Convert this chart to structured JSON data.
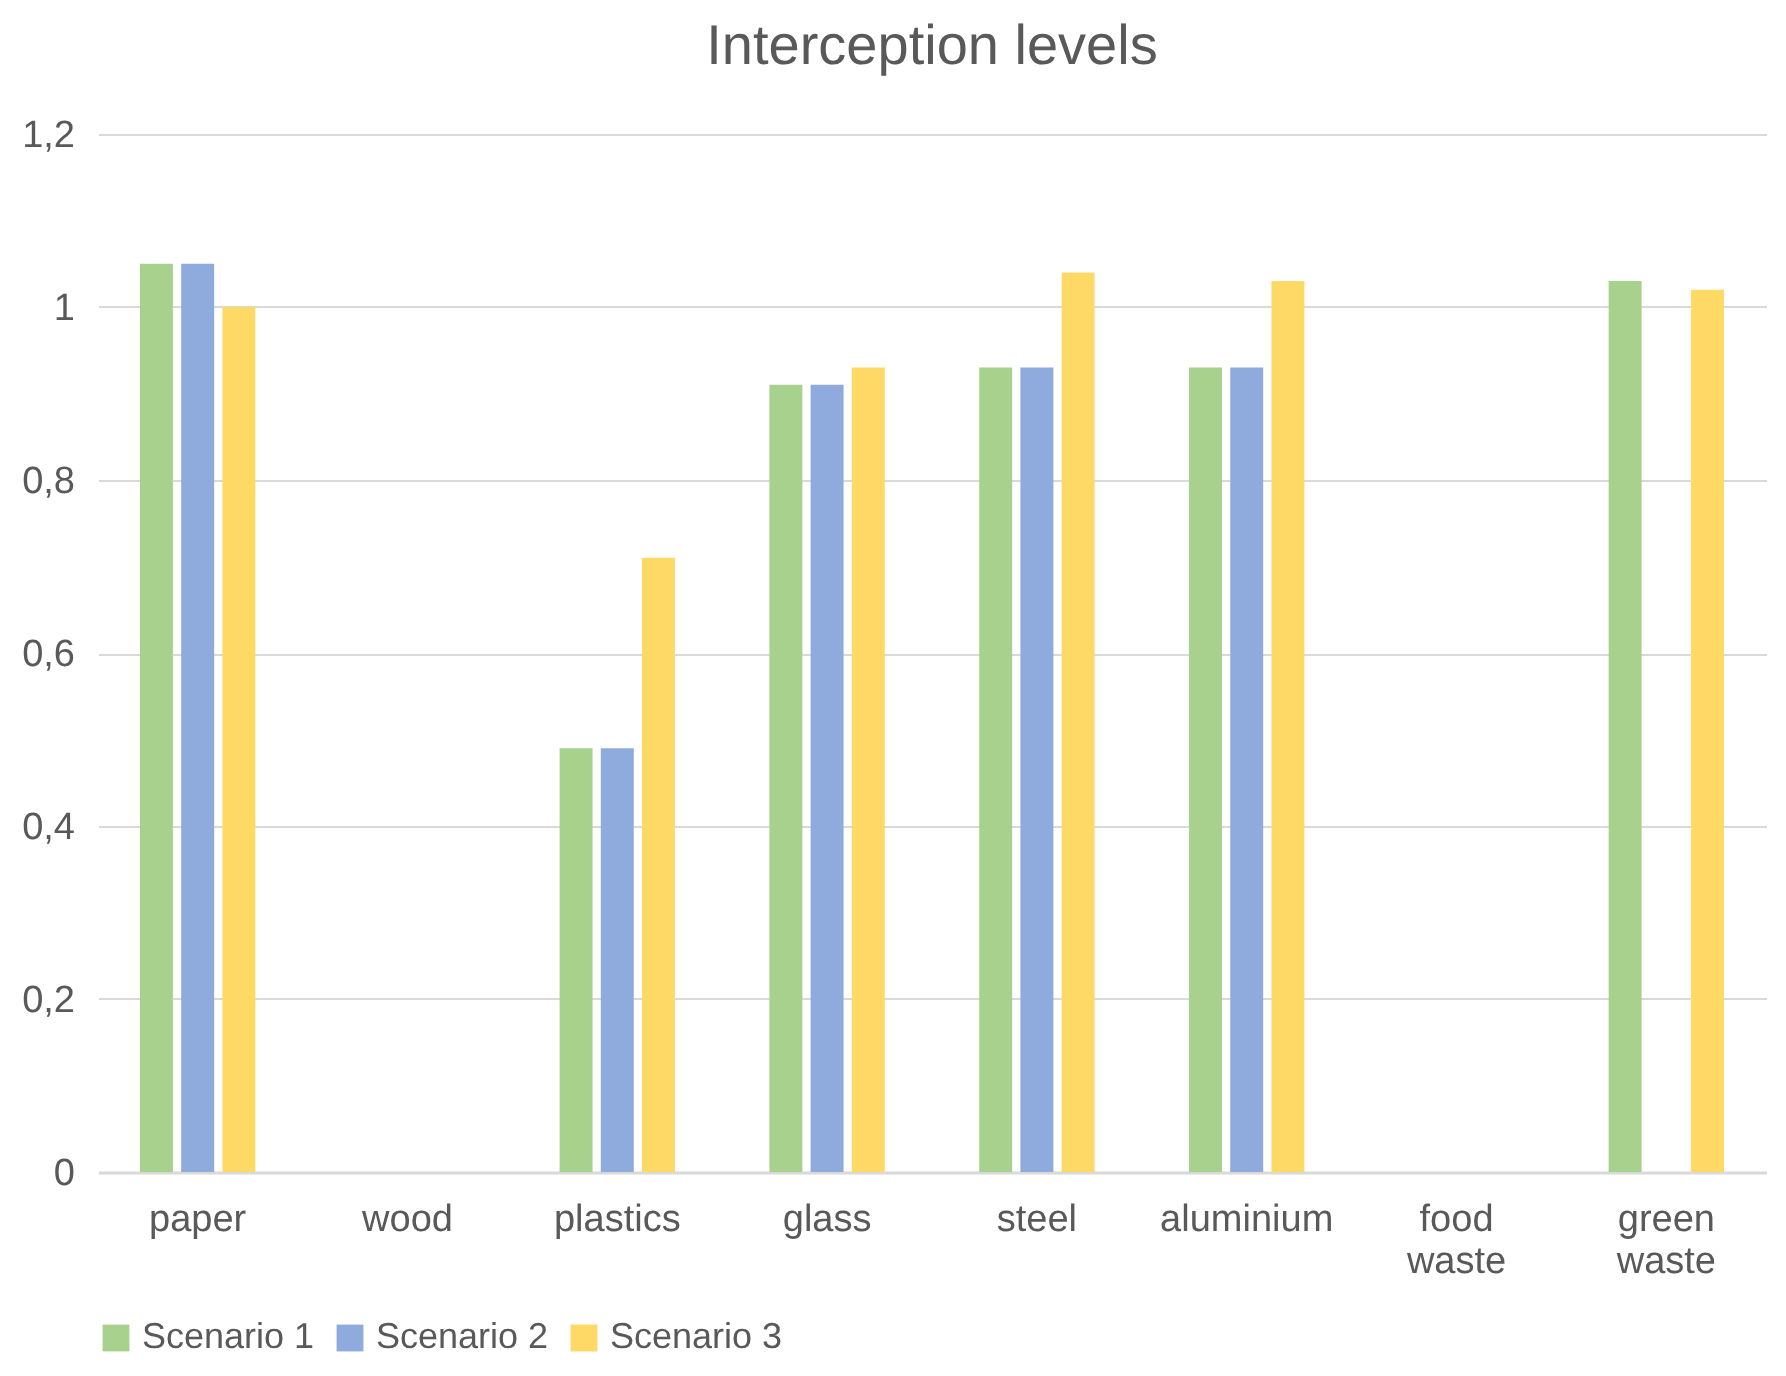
{
  "chart_data": {
    "type": "bar",
    "title": "Interception levels",
    "categories": [
      "paper",
      "wood",
      "plastics",
      "glass",
      "steel",
      "aluminium",
      "food waste",
      "green waste"
    ],
    "series": [
      {
        "name": "Scenario 1",
        "color": "#a9d18e",
        "values": [
          1.05,
          null,
          0.49,
          0.91,
          0.93,
          0.93,
          null,
          1.03
        ]
      },
      {
        "name": "Scenario 2",
        "color": "#8faadc",
        "values": [
          1.05,
          null,
          0.49,
          0.91,
          0.93,
          0.93,
          null,
          null
        ]
      },
      {
        "name": "Scenario 3",
        "color": "#ffd966",
        "values": [
          1.0,
          null,
          0.71,
          0.93,
          1.04,
          1.03,
          null,
          1.02
        ]
      }
    ],
    "ylim": [
      0,
      1.2
    ],
    "yticks": [
      0,
      {
        "value": 0.2,
        "label": "0,2"
      },
      {
        "value": 0.4,
        "label": "0,4"
      },
      {
        "value": 0.6,
        "label": "0,6"
      },
      {
        "value": 0.8,
        "label": "0,8"
      },
      1,
      {
        "value": 1.2,
        "label": "1,2"
      }
    ],
    "grid": "y",
    "legend": "bottom"
  }
}
